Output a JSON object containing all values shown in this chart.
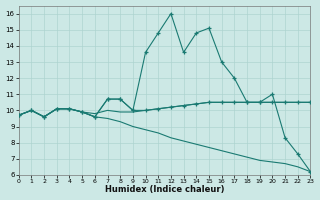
{
  "xlabel": "Humidex (Indice chaleur)",
  "bg_color": "#cce8e5",
  "grid_color": "#aed4d0",
  "line_color": "#1a7a72",
  "xlim": [
    0,
    23
  ],
  "ylim": [
    6,
    16.5
  ],
  "xticks": [
    0,
    1,
    2,
    3,
    4,
    5,
    6,
    7,
    8,
    9,
    10,
    11,
    12,
    13,
    14,
    15,
    16,
    17,
    18,
    19,
    20,
    21,
    22,
    23
  ],
  "yticks": [
    6,
    7,
    8,
    9,
    10,
    11,
    12,
    13,
    14,
    15,
    16
  ],
  "line_big_x": [
    0,
    1,
    2,
    3,
    4,
    5,
    6,
    7,
    8,
    9,
    10,
    11,
    12,
    13,
    14,
    15,
    16,
    17,
    18,
    19,
    20,
    21,
    22,
    23
  ],
  "line_big_y": [
    9.7,
    10.0,
    9.6,
    10.1,
    10.1,
    9.9,
    9.6,
    10.7,
    10.7,
    10.0,
    13.6,
    14.8,
    16.0,
    13.6,
    14.8,
    15.1,
    13.0,
    12.0,
    10.5,
    10.5,
    11.0,
    8.3,
    7.3,
    6.2
  ],
  "line_bump_x": [
    0,
    1,
    2,
    3,
    4,
    5,
    6,
    7,
    8,
    9,
    10,
    11,
    12,
    13,
    14,
    15,
    16,
    17,
    18,
    19,
    20,
    21,
    22,
    23
  ],
  "line_bump_y": [
    9.7,
    10.0,
    9.6,
    10.1,
    10.1,
    9.9,
    9.6,
    10.7,
    10.7,
    10.0,
    10.0,
    10.1,
    10.2,
    10.3,
    10.4,
    10.5,
    10.5,
    10.5,
    10.5,
    10.5,
    10.5,
    10.5,
    10.5,
    10.5
  ],
  "line_flat_x": [
    0,
    1,
    2,
    3,
    4,
    5,
    6,
    7,
    8,
    9,
    10,
    11,
    12,
    13,
    14,
    15,
    16,
    17,
    18,
    19,
    20,
    21,
    22,
    23
  ],
  "line_flat_y": [
    9.7,
    10.0,
    9.6,
    10.1,
    10.1,
    9.9,
    9.8,
    10.0,
    9.9,
    9.9,
    10.0,
    10.1,
    10.2,
    10.3,
    10.4,
    10.5,
    10.5,
    10.5,
    10.5,
    10.5,
    10.5,
    10.5,
    10.5,
    10.5
  ],
  "line_down_x": [
    0,
    1,
    2,
    3,
    4,
    5,
    6,
    7,
    8,
    9,
    10,
    11,
    12,
    13,
    14,
    15,
    16,
    17,
    18,
    19,
    20,
    21,
    22,
    23
  ],
  "line_down_y": [
    9.7,
    10.0,
    9.6,
    10.1,
    10.1,
    9.9,
    9.6,
    9.5,
    9.3,
    9.0,
    8.8,
    8.6,
    8.3,
    8.1,
    7.9,
    7.7,
    7.5,
    7.3,
    7.1,
    6.9,
    6.8,
    6.7,
    6.5,
    6.2
  ]
}
